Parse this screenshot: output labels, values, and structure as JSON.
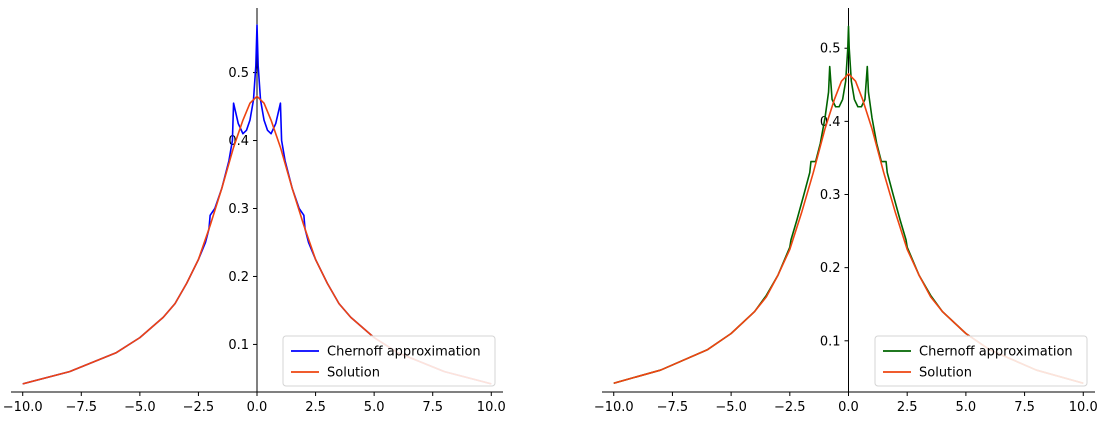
{
  "chart_data": [
    {
      "type": "line",
      "title": "",
      "xlabel": "",
      "ylabel": "",
      "xlim": [
        -10.5,
        10.5
      ],
      "ylim": [
        0.03,
        0.595
      ],
      "xticks": [
        -10.0,
        -7.5,
        -5.0,
        -2.5,
        0.0,
        2.5,
        5.0,
        7.5,
        10.0
      ],
      "xtick_labels": [
        "−10.0",
        "−7.5",
        "−5.0",
        "−2.5",
        "0.0",
        "2.5",
        "5.0",
        "7.5",
        "10.0"
      ],
      "yticks": [
        0.1,
        0.2,
        0.3,
        0.4,
        0.5
      ],
      "ytick_labels": [
        "0.1",
        "0.2",
        "0.3",
        "0.4",
        "0.5"
      ],
      "grid": false,
      "legend_position": "lower-right",
      "series": [
        {
          "name": "Chernoff approximation",
          "color": "#0000ff",
          "x": [
            -10.0,
            -8.0,
            -6.0,
            -5.0,
            -4.0,
            -3.5,
            -3.0,
            -2.5,
            -2.2,
            -2.05,
            -2.0,
            -1.8,
            -1.5,
            -1.2,
            -1.05,
            -1.0,
            -0.8,
            -0.6,
            -0.45,
            -0.3,
            -0.15,
            -0.05,
            0.0,
            0.05,
            0.15,
            0.3,
            0.45,
            0.6,
            0.8,
            1.0,
            1.05,
            1.2,
            1.5,
            1.8,
            2.0,
            2.05,
            2.2,
            2.5,
            3.0,
            3.5,
            4.0,
            5.0,
            6.0,
            8.0,
            10.0
          ],
          "y": [
            0.042,
            0.06,
            0.088,
            0.11,
            0.14,
            0.16,
            0.19,
            0.225,
            0.25,
            0.27,
            0.29,
            0.3,
            0.33,
            0.37,
            0.4,
            0.455,
            0.425,
            0.41,
            0.415,
            0.43,
            0.46,
            0.51,
            0.57,
            0.51,
            0.46,
            0.43,
            0.415,
            0.41,
            0.425,
            0.455,
            0.4,
            0.37,
            0.33,
            0.3,
            0.29,
            0.27,
            0.25,
            0.225,
            0.19,
            0.16,
            0.14,
            0.11,
            0.088,
            0.06,
            0.042
          ]
        },
        {
          "name": "Solution",
          "color": "#ee4411",
          "x": [
            -10.0,
            -8.0,
            -6.0,
            -5.0,
            -4.0,
            -3.5,
            -3.0,
            -2.5,
            -2.0,
            -1.5,
            -1.0,
            -0.6,
            -0.3,
            0.0,
            0.3,
            0.6,
            1.0,
            1.5,
            2.0,
            2.5,
            3.0,
            3.5,
            4.0,
            5.0,
            6.0,
            8.0,
            10.0
          ],
          "y": [
            0.042,
            0.06,
            0.088,
            0.11,
            0.14,
            0.16,
            0.19,
            0.225,
            0.275,
            0.33,
            0.39,
            0.43,
            0.455,
            0.465,
            0.455,
            0.43,
            0.39,
            0.33,
            0.275,
            0.225,
            0.19,
            0.16,
            0.14,
            0.11,
            0.088,
            0.06,
            0.042
          ]
        }
      ]
    },
    {
      "type": "line",
      "title": "",
      "xlabel": "",
      "ylabel": "",
      "xlim": [
        -10.5,
        10.5
      ],
      "ylim": [
        0.03,
        0.555
      ],
      "xticks": [
        -10.0,
        -7.5,
        -5.0,
        -2.5,
        0.0,
        2.5,
        5.0,
        7.5,
        10.0
      ],
      "xtick_labels": [
        "−10.0",
        "−7.5",
        "−5.0",
        "−2.5",
        "0.0",
        "2.5",
        "5.0",
        "7.5",
        "10.0"
      ],
      "yticks": [
        0.1,
        0.2,
        0.3,
        0.4,
        0.5
      ],
      "ytick_labels": [
        "0.1",
        "0.2",
        "0.3",
        "0.4",
        "0.5"
      ],
      "grid": false,
      "legend_position": "lower-right",
      "series": [
        {
          "name": "Chernoff approximation",
          "color": "#006400",
          "x": [
            -10.0,
            -8.0,
            -6.0,
            -5.0,
            -4.0,
            -3.5,
            -3.0,
            -2.5,
            -2.45,
            -2.2,
            -1.9,
            -1.65,
            -1.6,
            -1.4,
            -1.2,
            -1.0,
            -0.85,
            -0.8,
            -0.7,
            -0.55,
            -0.4,
            -0.25,
            -0.12,
            -0.03,
            0.0,
            0.03,
            0.12,
            0.25,
            0.4,
            0.55,
            0.7,
            0.8,
            0.85,
            1.0,
            1.2,
            1.4,
            1.6,
            1.65,
            1.9,
            2.2,
            2.45,
            2.5,
            3.0,
            3.5,
            4.0,
            5.0,
            6.0,
            8.0,
            10.0
          ],
          "y": [
            0.042,
            0.06,
            0.088,
            0.11,
            0.14,
            0.162,
            0.19,
            0.228,
            0.238,
            0.265,
            0.3,
            0.33,
            0.345,
            0.345,
            0.37,
            0.405,
            0.44,
            0.475,
            0.43,
            0.42,
            0.42,
            0.43,
            0.455,
            0.5,
            0.53,
            0.5,
            0.455,
            0.43,
            0.42,
            0.42,
            0.43,
            0.475,
            0.44,
            0.405,
            0.37,
            0.345,
            0.345,
            0.33,
            0.3,
            0.265,
            0.238,
            0.228,
            0.19,
            0.162,
            0.14,
            0.11,
            0.088,
            0.06,
            0.042
          ]
        },
        {
          "name": "Solution",
          "color": "#ee4411",
          "x": [
            -10.0,
            -8.0,
            -6.0,
            -5.0,
            -4.0,
            -3.5,
            -3.0,
            -2.5,
            -2.0,
            -1.5,
            -1.0,
            -0.6,
            -0.3,
            0.0,
            0.3,
            0.6,
            1.0,
            1.5,
            2.0,
            2.5,
            3.0,
            3.5,
            4.0,
            5.0,
            6.0,
            8.0,
            10.0
          ],
          "y": [
            0.042,
            0.06,
            0.088,
            0.11,
            0.14,
            0.16,
            0.19,
            0.225,
            0.275,
            0.33,
            0.39,
            0.43,
            0.455,
            0.465,
            0.455,
            0.43,
            0.39,
            0.33,
            0.275,
            0.225,
            0.19,
            0.16,
            0.14,
            0.11,
            0.088,
            0.06,
            0.042
          ]
        }
      ]
    }
  ]
}
